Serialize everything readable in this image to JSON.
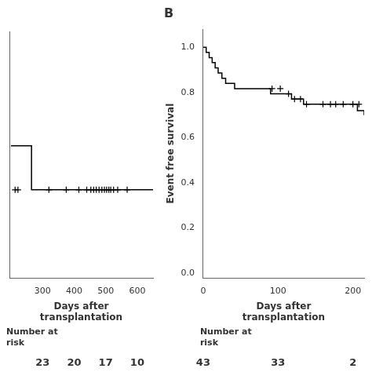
{
  "chart_data": [
    {
      "type": "line",
      "xlabel": [
        "Days after",
        "transplantation"
      ],
      "xlim": [
        195,
        650
      ],
      "xticks": [
        300,
        400,
        500,
        600
      ],
      "ylim": [
        0.82,
        0.96
      ],
      "yticks": [],
      "grid": false,
      "tick_labels": "x",
      "series": [
        {
          "type": "line",
          "color": "#000000",
          "x": [
            200,
            265,
            265,
            650
          ],
          "values": [
            0.895,
            0.895,
            0.87,
            0.87
          ]
        },
        {
          "type": "scatter",
          "marker": "+",
          "color": "#000000",
          "x": [
            213,
            222,
            320,
            375,
            415,
            440,
            453,
            462,
            470,
            479,
            488,
            496,
            503,
            510,
            516,
            525,
            538,
            568
          ],
          "values": [
            0.87,
            0.87,
            0.87,
            0.87,
            0.87,
            0.87,
            0.87,
            0.87,
            0.87,
            0.87,
            0.87,
            0.87,
            0.87,
            0.87,
            0.87,
            0.87,
            0.87,
            0.87
          ]
        }
      ],
      "number_at_risk": {
        "label": [
          "Number at",
          "risk"
        ],
        "x": [
          300,
          400,
          500,
          600
        ],
        "values": [
          23,
          20,
          17,
          10
        ]
      }
    },
    {
      "type": "line",
      "title": "B",
      "xlabel": [
        "Days after",
        "transplantation"
      ],
      "ylabel": "Event free survival",
      "xlim": [
        0,
        215
      ],
      "xticks": [
        0,
        100,
        200
      ],
      "ylim": [
        -0.02,
        1.08
      ],
      "yticks": [
        {
          "value": 0.0,
          "label": "0.0"
        },
        0.2,
        0.4,
        0.6,
        0.8,
        {
          "value": 1.0,
          "label": "1.0"
        }
      ],
      "grid": false,
      "series": [
        {
          "type": "line",
          "line_style": "steps",
          "color": "#000000",
          "x": [
            0,
            4,
            8,
            12,
            16,
            20,
            25,
            30,
            35,
            42,
            50,
            60,
            70,
            80,
            90,
            100,
            110,
            118,
            126,
            134,
            142,
            148,
            155,
            162,
            168,
            175,
            182,
            190,
            198,
            206,
            215
          ],
          "values": [
            1.0,
            0.977,
            0.954,
            0.932,
            0.909,
            0.886,
            0.863,
            0.84,
            0.84,
            0.817,
            0.817,
            0.817,
            0.817,
            0.817,
            0.794,
            0.794,
            0.794,
            0.771,
            0.771,
            0.748,
            0.748,
            0.748,
            0.748,
            0.748,
            0.748,
            0.748,
            0.748,
            0.748,
            0.748,
            0.72,
            0.7
          ]
        },
        {
          "type": "scatter",
          "marker": "+",
          "color": "#000000",
          "x": [
            92,
            103,
            114,
            122,
            130,
            138,
            160,
            170,
            177,
            187,
            200,
            208
          ],
          "values": [
            0.817,
            0.817,
            0.794,
            0.771,
            0.771,
            0.748,
            0.748,
            0.748,
            0.748,
            0.748,
            0.748,
            0.748
          ]
        }
      ],
      "number_at_risk": {
        "label": [
          "Number at",
          "risk"
        ],
        "x": [
          0,
          100,
          200
        ],
        "values": [
          43,
          33,
          2
        ]
      }
    }
  ]
}
